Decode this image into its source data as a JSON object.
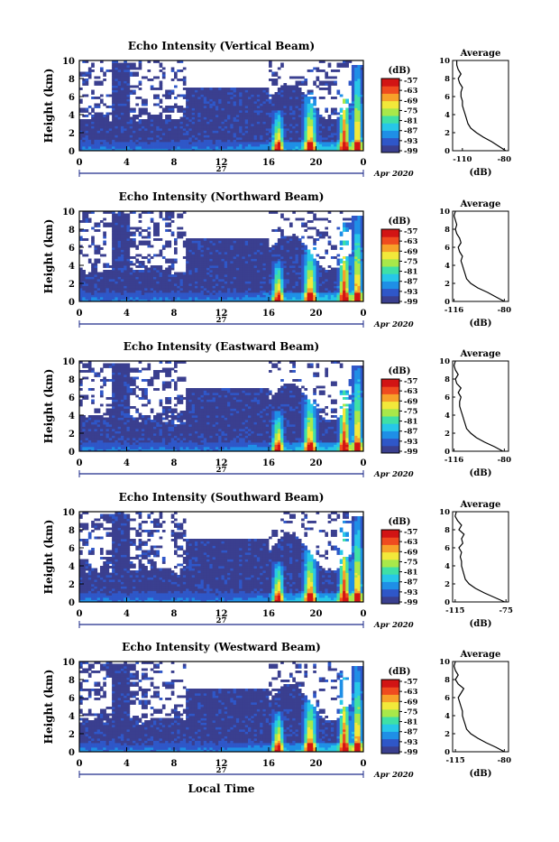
{
  "chart_data": [
    {
      "type": "heatmap",
      "title": "Echo Intensity (Vertical Beam)",
      "ylabel": "Height (km)",
      "ylim": [
        0,
        10
      ],
      "y_ticks": [
        "10",
        "8",
        "6",
        "4",
        "2",
        "0"
      ],
      "x_ticks": [
        "0",
        "4",
        "8",
        "12",
        "16",
        "20",
        "0"
      ],
      "xlim": [
        0,
        24
      ],
      "date_label": "27",
      "month_year": "Apr 2020",
      "colorbar": {
        "title": "(dB)",
        "labels": [
          "-57",
          "-63",
          "-69",
          "-75",
          "-81",
          "-87",
          "-93",
          "-99"
        ]
      },
      "profile": {
        "title": "Average",
        "xlabel": "(dB)",
        "x_ticks": [
          "-110",
          "-80"
        ],
        "xlim": [
          -117,
          -77
        ],
        "heights": [
          0,
          0.5,
          1,
          1.5,
          2,
          2.5,
          3,
          3.5,
          4,
          4.5,
          5,
          5.5,
          6,
          6.5,
          7,
          7.5,
          8,
          8.5,
          9,
          9.5,
          10
        ],
        "values": [
          -79,
          -84,
          -89,
          -95,
          -100,
          -104,
          -106,
          -107,
          -108,
          -109,
          -110,
          -110,
          -111,
          -111,
          -110,
          -112,
          -113,
          -111,
          -113,
          -114,
          -114
        ]
      }
    },
    {
      "type": "heatmap",
      "title": "Echo Intensity (Northward Beam)",
      "ylabel": "Height (km)",
      "ylim": [
        0,
        10
      ],
      "y_ticks": [
        "10",
        "8",
        "6",
        "4",
        "2",
        "0"
      ],
      "x_ticks": [
        "0",
        "4",
        "8",
        "12",
        "16",
        "20",
        "0"
      ],
      "xlim": [
        0,
        24
      ],
      "date_label": "27",
      "month_year": "Apr 2020",
      "colorbar": {
        "title": "(dB)",
        "labels": [
          "-57",
          "-63",
          "-69",
          "-75",
          "-81",
          "-87",
          "-93",
          "-99"
        ]
      },
      "profile": {
        "title": "Average",
        "xlabel": "(dB)",
        "x_ticks": [
          "-116",
          "-80"
        ],
        "xlim": [
          -117,
          -77
        ],
        "heights": [
          0,
          0.5,
          1,
          1.5,
          2,
          2.5,
          3,
          3.5,
          4,
          4.5,
          5,
          5.5,
          6,
          6.5,
          7,
          7.5,
          8,
          8.5,
          9,
          9.5,
          10
        ],
        "values": [
          -80,
          -86,
          -92,
          -99,
          -104,
          -107,
          -108,
          -109,
          -110,
          -111,
          -110,
          -112,
          -113,
          -111,
          -112,
          -114,
          -115,
          -114,
          -115,
          -116,
          -115
        ]
      }
    },
    {
      "type": "heatmap",
      "title": "Echo Intensity (Eastward Beam)",
      "ylabel": "Height (km)",
      "ylim": [
        0,
        10
      ],
      "y_ticks": [
        "10",
        "8",
        "6",
        "4",
        "2",
        "0"
      ],
      "x_ticks": [
        "0",
        "4",
        "8",
        "12",
        "16",
        "20",
        "0"
      ],
      "xlim": [
        0,
        24
      ],
      "date_label": "27",
      "month_year": "Apr 2020",
      "colorbar": {
        "title": "(dB)",
        "labels": [
          "-57",
          "-63",
          "-69",
          "-75",
          "-81",
          "-87",
          "-93",
          "-99"
        ]
      },
      "profile": {
        "title": "Average",
        "xlabel": "(dB)",
        "x_ticks": [
          "-116",
          "-80"
        ],
        "xlim": [
          -117,
          -77
        ],
        "heights": [
          0,
          0.5,
          1,
          1.5,
          2,
          2.5,
          3,
          3.5,
          4,
          4.5,
          5,
          5.5,
          6,
          6.5,
          7,
          7.5,
          8,
          8.5,
          9,
          9.5,
          10
        ],
        "values": [
          -81,
          -87,
          -94,
          -100,
          -104,
          -107,
          -108,
          -109,
          -110,
          -111,
          -112,
          -112,
          -111,
          -113,
          -111,
          -114,
          -115,
          -113,
          -115,
          -116,
          -115
        ]
      }
    },
    {
      "type": "heatmap",
      "title": "Echo Intensity (Southward Beam)",
      "ylabel": "Height (km)",
      "ylim": [
        0,
        10
      ],
      "y_ticks": [
        "10",
        "8",
        "6",
        "4",
        "2",
        "0"
      ],
      "x_ticks": [
        "0",
        "4",
        "8",
        "12",
        "16",
        "20",
        "0"
      ],
      "xlim": [
        0,
        24
      ],
      "date_label": "27",
      "month_year": "Apr 2020",
      "colorbar": {
        "title": "(dB)",
        "labels": [
          "-57",
          "-63",
          "-69",
          "-75",
          "-81",
          "-87",
          "-93",
          "-99"
        ]
      },
      "profile": {
        "title": "Average",
        "xlabel": "(dB)",
        "x_ticks": [
          "-115",
          "-75"
        ],
        "xlim": [
          -117,
          -73
        ],
        "heights": [
          0,
          0.5,
          1,
          1.5,
          2,
          2.5,
          3,
          3.5,
          4,
          4.5,
          5,
          5.5,
          6,
          6.5,
          7,
          7.5,
          8,
          8.5,
          9,
          9.5,
          10
        ],
        "values": [
          -76,
          -84,
          -92,
          -99,
          -104,
          -107,
          -108,
          -109,
          -110,
          -110,
          -111,
          -110,
          -112,
          -109,
          -110,
          -108,
          -112,
          -110,
          -113,
          -115,
          -114
        ]
      }
    },
    {
      "type": "heatmap",
      "title": "Echo Intensity (Westward Beam)",
      "ylabel": "Height (km)",
      "ylim": [
        0,
        10
      ],
      "y_ticks": [
        "10",
        "8",
        "6",
        "4",
        "2",
        "0"
      ],
      "x_ticks": [
        "0",
        "4",
        "8",
        "12",
        "16",
        "20",
        "0"
      ],
      "xlim": [
        0,
        24
      ],
      "date_label": "27",
      "month_year": "Apr 2020",
      "xlabel": "Local Time",
      "colorbar": {
        "title": "(dB)",
        "labels": [
          "-57",
          "-63",
          "-69",
          "-75",
          "-81",
          "-87",
          "-93",
          "-99"
        ]
      },
      "profile": {
        "title": "Average",
        "xlabel": "(dB)",
        "x_ticks": [
          "-115",
          "-80"
        ],
        "xlim": [
          -117,
          -77
        ],
        "heights": [
          0,
          0.5,
          1,
          1.5,
          2,
          2.5,
          3,
          3.5,
          4,
          4.5,
          5,
          5.5,
          6,
          6.5,
          7,
          7.5,
          8,
          8.5,
          9,
          9.5,
          10
        ],
        "values": [
          -80,
          -86,
          -93,
          -99,
          -104,
          -107,
          -108,
          -109,
          -110,
          -110,
          -111,
          -112,
          -113,
          -111,
          -109,
          -113,
          -115,
          -113,
          -115,
          -116,
          -115
        ]
      }
    }
  ],
  "colors": {
    "background_echo": "#3a3f8f",
    "colormap": [
      "#3a3f8f",
      "#2f57c8",
      "#1f8fe6",
      "#27c7e8",
      "#3fe0a6",
      "#a8e84a",
      "#f2e93a",
      "#f7a12a",
      "#ef4b1f",
      "#d21414"
    ]
  }
}
